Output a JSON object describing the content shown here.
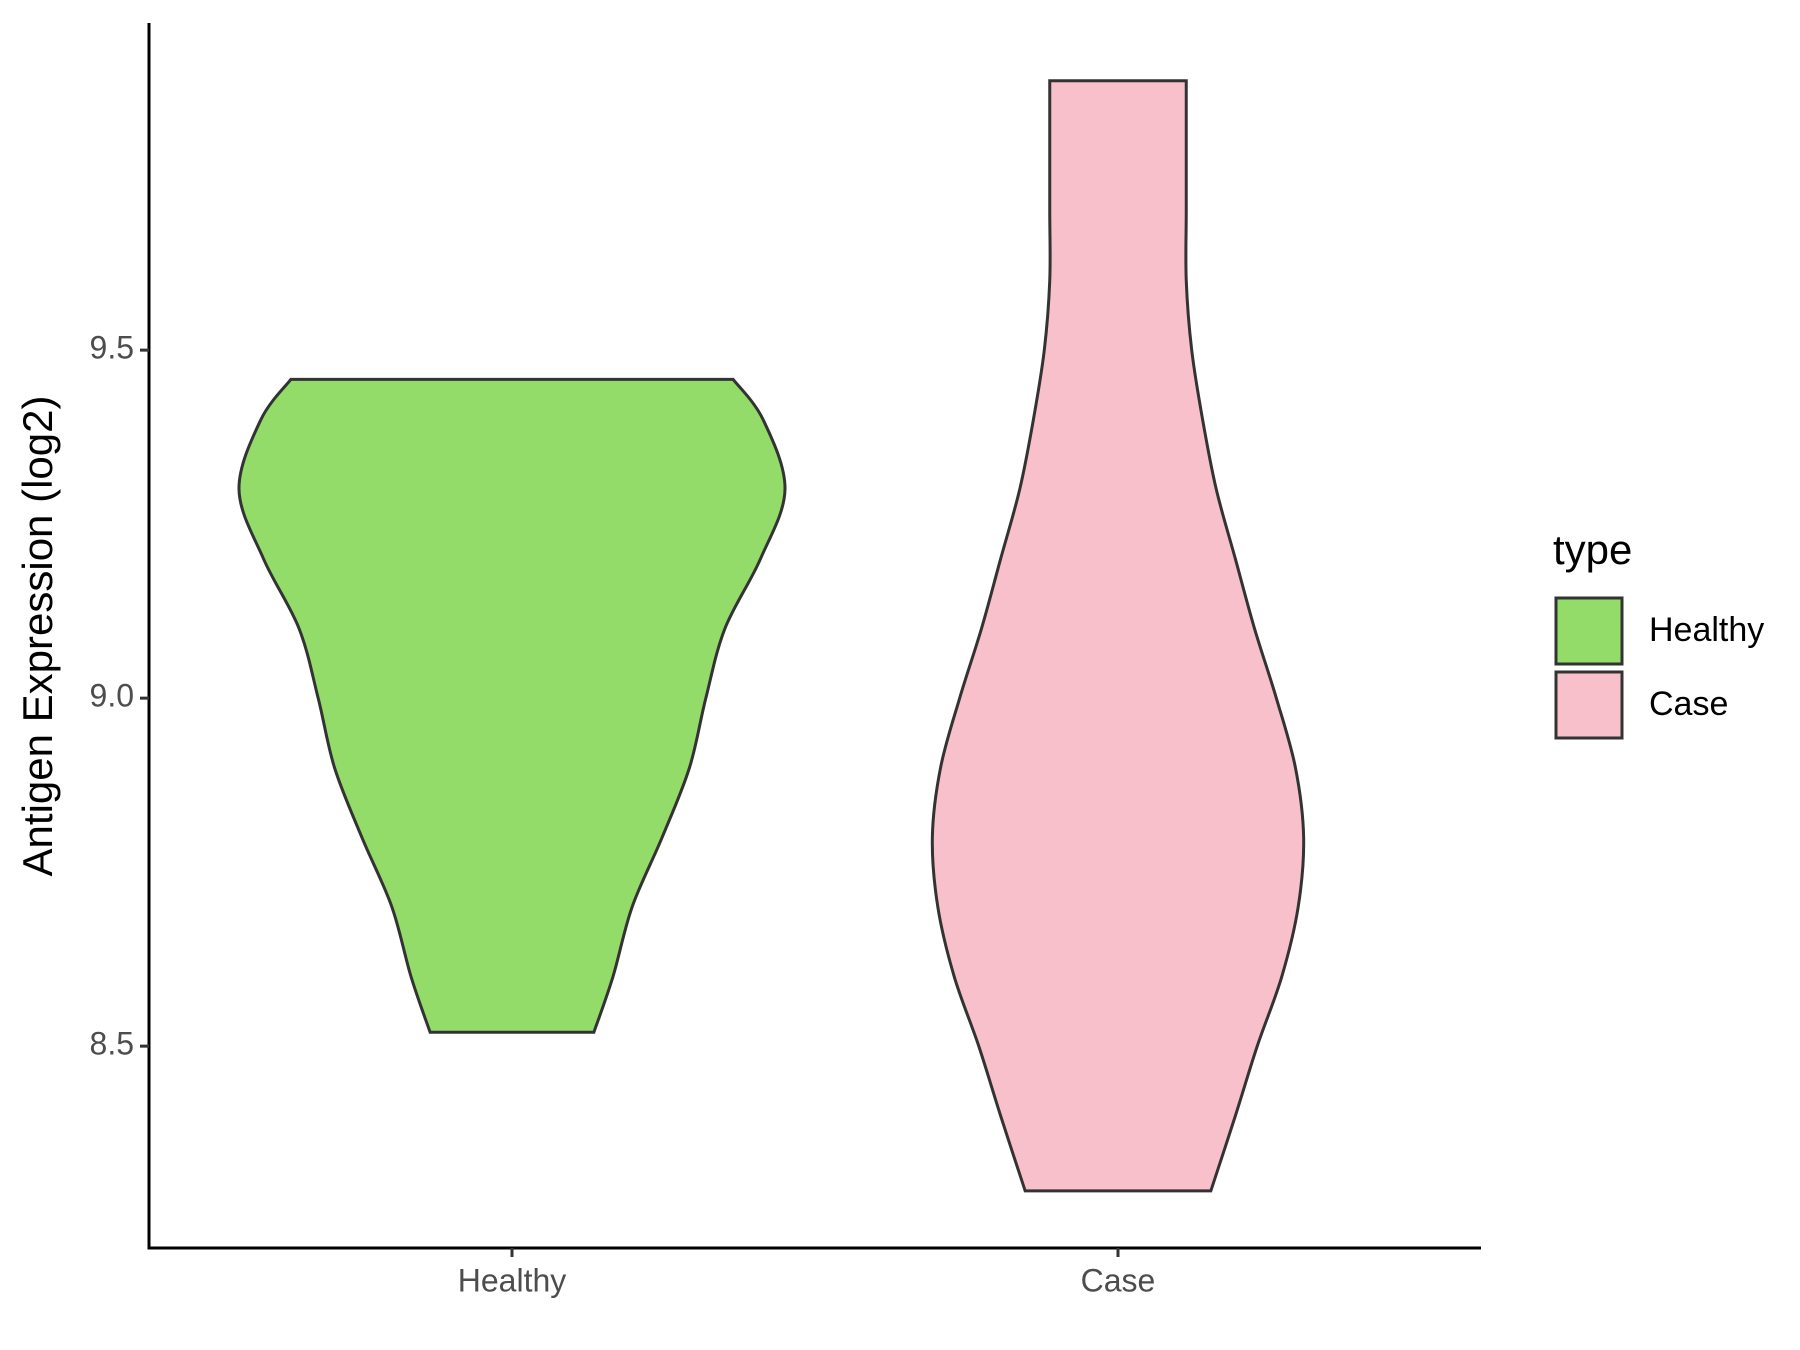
{
  "chart_data": {
    "type": "violin",
    "ylabel": "Antigen Expression (log2)",
    "categories": [
      "Healthy",
      "Case"
    ],
    "ylim": [
      8.21,
      9.97
    ],
    "yticks": [
      8.5,
      {
        "value": 9,
        "label": "9.0"
      },
      9.5
    ],
    "legend_title": "type",
    "legend_position": "right",
    "series": [
      {
        "name": "Healthy",
        "color": "#93dc6a",
        "y": [
          9.458,
          9.4,
          9.3,
          9.2,
          9.1,
          9.0,
          8.9,
          8.8,
          8.7,
          8.6,
          8.52
        ],
        "density": [
          0.81,
          0.92,
          1.0,
          0.91,
          0.78,
          0.71,
          0.65,
          0.55,
          0.44,
          0.37,
          0.3
        ]
      },
      {
        "name": "Case",
        "color": "#f7c0cb",
        "y": [
          9.887,
          9.8,
          9.7,
          9.6,
          9.5,
          9.4,
          9.3,
          9.2,
          9.1,
          9.0,
          8.9,
          8.8,
          8.7,
          8.6,
          8.5,
          8.4,
          8.292
        ],
        "density": [
          0.25,
          0.25,
          0.25,
          0.25,
          0.27,
          0.31,
          0.36,
          0.43,
          0.5,
          0.58,
          0.65,
          0.68,
          0.66,
          0.6,
          0.51,
          0.43,
          0.34
        ]
      }
    ]
  }
}
